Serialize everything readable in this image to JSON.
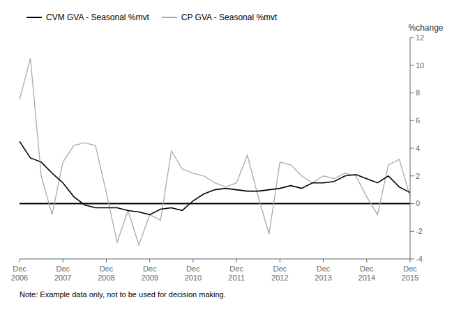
{
  "chart_data": {
    "type": "line",
    "categories": [
      "Dec\n2006",
      null,
      null,
      null,
      "Dec\n2007",
      null,
      null,
      null,
      "Dec\n2008",
      null,
      null,
      null,
      "Dec\n2009",
      null,
      null,
      null,
      "Dec\n2010",
      null,
      null,
      null,
      "Dec\n2011",
      null,
      null,
      null,
      "Dec\n2012",
      null,
      null,
      null,
      "Dec\n2013",
      null,
      null,
      null,
      "Dec\n2014",
      null,
      null,
      null,
      "Dec\n2015"
    ],
    "series": [
      {
        "name": "CVM GVA - Seasonal %mvt",
        "color": "#000000",
        "values": [
          4.5,
          3.3,
          3.0,
          2.2,
          1.5,
          0.5,
          -0.1,
          -0.3,
          -0.3,
          -0.3,
          -0.5,
          -0.6,
          -0.8,
          -0.4,
          -0.3,
          -0.5,
          0.2,
          0.7,
          1.0,
          1.1,
          1.0,
          0.9,
          0.9,
          1.0,
          1.1,
          1.3,
          1.1,
          1.5,
          1.5,
          1.6,
          2.0,
          2.1,
          1.8,
          1.5,
          2.0,
          1.2,
          0.8
        ]
      },
      {
        "name": "CP GVA - Seasonal %mvt",
        "color": "#aaaaaa",
        "values": [
          7.5,
          10.5,
          2.0,
          -0.8,
          3.0,
          4.2,
          4.4,
          4.2,
          0.8,
          -2.8,
          -0.5,
          -3.0,
          -0.8,
          -1.2,
          3.8,
          2.5,
          2.2,
          2.0,
          1.5,
          1.2,
          1.5,
          3.5,
          0.5,
          -2.2,
          3.0,
          2.8,
          2.0,
          1.5,
          2.0,
          1.8,
          2.2,
          2.0,
          0.5,
          -0.8,
          2.8,
          3.2,
          0.5
        ]
      }
    ],
    "ylabel": "%change",
    "ylim": [
      -4,
      12
    ],
    "yticks": [
      -4,
      -2,
      0,
      2,
      4,
      6,
      8,
      10,
      12
    ],
    "grid": false,
    "legend": "upper left",
    "annotations": [
      "Note: Example data only, not to be used for decision making."
    ]
  }
}
